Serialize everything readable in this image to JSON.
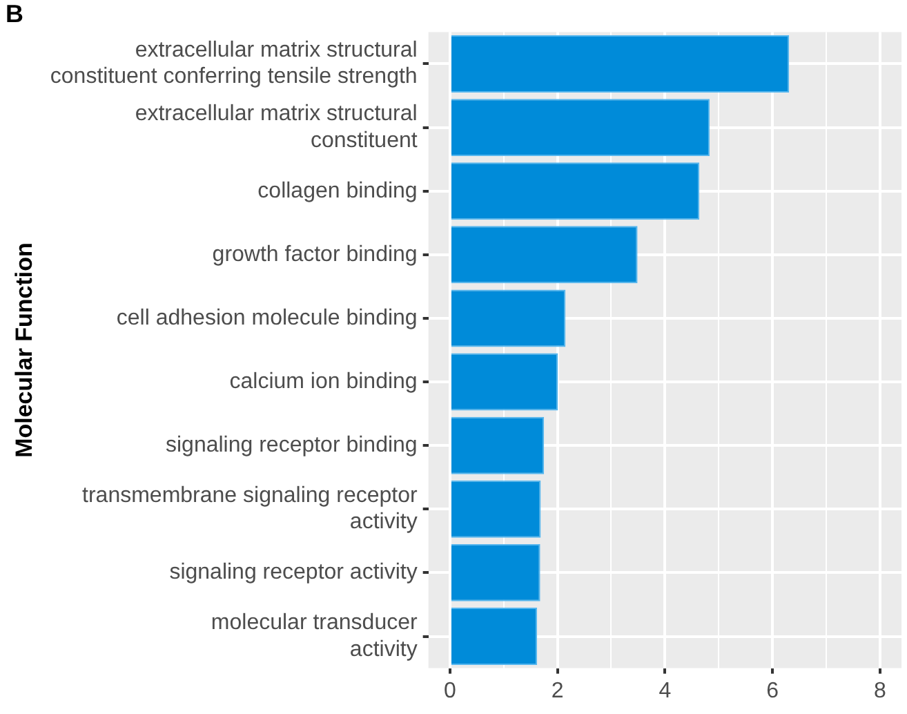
{
  "chart_data": {
    "type": "bar",
    "orientation": "horizontal",
    "annotations": [
      "B"
    ],
    "ylabel": "Molecular Function",
    "categories": [
      "extracellular matrix structural\nconstituent conferring tensile strength",
      "extracellular matrix structural\nconstituent",
      "collagen binding",
      "growth factor binding",
      "cell adhesion molecule binding",
      "calcium ion binding",
      "signaling receptor binding",
      "transmembrane signaling receptor\nactivity",
      "signaling receptor activity",
      "molecular transducer\nactivity"
    ],
    "values": [
      6.31,
      4.83,
      4.64,
      3.49,
      2.15,
      2.01,
      1.75,
      1.69,
      1.68,
      1.62
    ],
    "color": "#008bd9",
    "xlim": [
      -0.4,
      8.4
    ],
    "xticks": [
      0,
      {
        "value": 1,
        "label": null
      },
      2,
      {
        "value": 3,
        "label": null
      },
      4,
      {
        "value": 5,
        "label": null
      },
      6,
      {
        "value": 7,
        "label": null
      },
      8
    ],
    "grid": true
  }
}
